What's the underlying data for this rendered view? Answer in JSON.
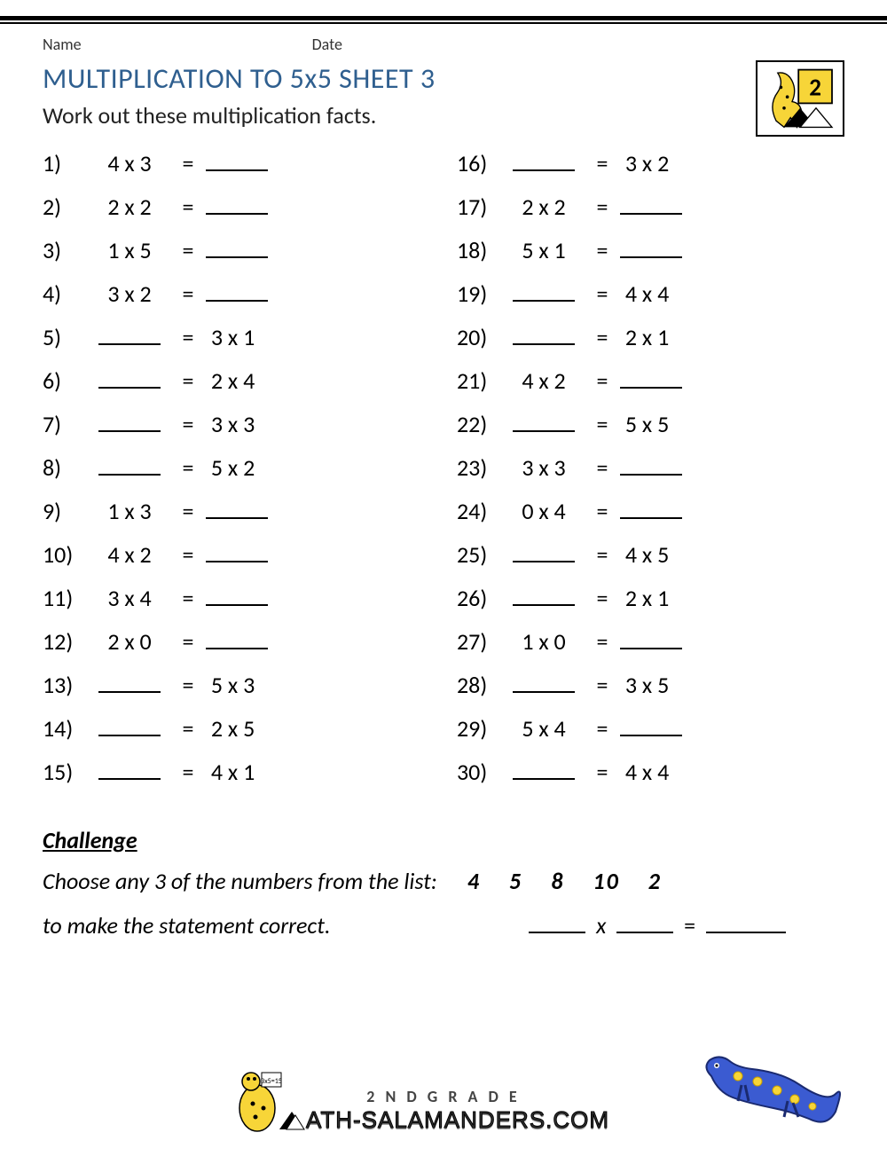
{
  "meta": {
    "name_label": "Name",
    "date_label": "Date"
  },
  "title": "MULTIPLICATION TO 5x5 SHEET 3",
  "instructions": "Work out these multiplication facts.",
  "logo": {
    "grade_number": "2"
  },
  "problems_left": [
    {
      "n": "1)",
      "lhs": "4 x 3",
      "blank_side": "right"
    },
    {
      "n": "2)",
      "lhs": "2 x 2",
      "blank_side": "right"
    },
    {
      "n": "3)",
      "lhs": "1 x 5",
      "blank_side": "right"
    },
    {
      "n": "4)",
      "lhs": "3 x 2",
      "blank_side": "right"
    },
    {
      "n": "5)",
      "rhs": "3 x 1",
      "blank_side": "left"
    },
    {
      "n": "6)",
      "rhs": "2 x 4",
      "blank_side": "left"
    },
    {
      "n": "7)",
      "rhs": "3 x 3",
      "blank_side": "left"
    },
    {
      "n": "8)",
      "rhs": "5 x 2",
      "blank_side": "left"
    },
    {
      "n": "9)",
      "lhs": "1 x 3",
      "blank_side": "right"
    },
    {
      "n": "10)",
      "lhs": "4 x 2",
      "blank_side": "right"
    },
    {
      "n": "11)",
      "lhs": "3 x 4",
      "blank_side": "right"
    },
    {
      "n": "12)",
      "lhs": "2 x 0",
      "blank_side": "right"
    },
    {
      "n": "13)",
      "rhs": "5 x 3",
      "blank_side": "left"
    },
    {
      "n": "14)",
      "rhs": "2 x 5",
      "blank_side": "left"
    },
    {
      "n": "15)",
      "rhs": "4 x 1",
      "blank_side": "left"
    }
  ],
  "problems_right": [
    {
      "n": "16)",
      "rhs": "3 x 2",
      "blank_side": "left"
    },
    {
      "n": "17)",
      "lhs": "2 x 2",
      "blank_side": "right"
    },
    {
      "n": "18)",
      "lhs": "5 x 1",
      "blank_side": "right"
    },
    {
      "n": "19)",
      "rhs": "4 x 4",
      "blank_side": "left"
    },
    {
      "n": "20)",
      "rhs": "2 x 1",
      "blank_side": "left"
    },
    {
      "n": "21)",
      "lhs": "4 x 2",
      "blank_side": "right"
    },
    {
      "n": "22)",
      "rhs": "5 x 5",
      "blank_side": "left"
    },
    {
      "n": "23)",
      "lhs": "3 x 3",
      "blank_side": "right"
    },
    {
      "n": "24)",
      "lhs": "0 x 4",
      "blank_side": "right"
    },
    {
      "n": "25)",
      "rhs": "4 x 5",
      "blank_side": "left"
    },
    {
      "n": "26)",
      "rhs": "2 x 1",
      "blank_side": "left"
    },
    {
      "n": "27)",
      "lhs": "1 x 0",
      "blank_side": "right"
    },
    {
      "n": "28)",
      "rhs": "3 x 5",
      "blank_side": "left"
    },
    {
      "n": "29)",
      "lhs": "5 x 4",
      "blank_side": "right"
    },
    {
      "n": "30)",
      "rhs": "4 x 4",
      "blank_side": "left"
    }
  ],
  "challenge": {
    "heading": "Challenge",
    "line1": "Choose any 3 of the numbers from the list:",
    "numbers": [
      "4",
      "5",
      "8",
      "10",
      "2"
    ],
    "line2": "to make the statement correct.",
    "op": "x",
    "eq": "="
  },
  "footer": {
    "grade": "2 N D  G R A D E",
    "site": "ATH-SALAMANDERS.COM"
  },
  "colors": {
    "title": "#2f5f8f",
    "text": "#000000",
    "salamander_body": "#3b5bd1",
    "salamander_spots": "#f7d538",
    "logo_bg": "#f7d538"
  }
}
